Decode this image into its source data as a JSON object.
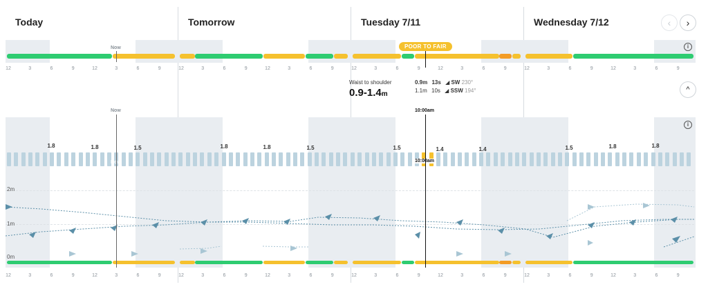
{
  "days": [
    {
      "title": "Today"
    },
    {
      "title": "Tomorrow"
    },
    {
      "title": "Tuesday 7/11"
    },
    {
      "title": "Wednesday 7/12"
    }
  ],
  "nav": {
    "prev": "‹",
    "next": "›",
    "collapse": "^"
  },
  "info_glyph": "i",
  "now_label": "Now",
  "hour_ticks": [
    "12",
    "3",
    "6",
    "9",
    "12",
    "3",
    "6",
    "9"
  ],
  "badge": "POOR TO FAIR",
  "detail": {
    "description": "Waist to shoulder",
    "range": "0.9-1.4",
    "range_unit": "m",
    "swells": [
      {
        "height": "0.9m",
        "period": "13s",
        "direction": "SW",
        "degrees": "230°"
      },
      {
        "height": "1.1m",
        "period": "10s",
        "direction": "SSW",
        "degrees": "194°"
      }
    ]
  },
  "time_marker": "10:00am",
  "tide_heights": [
    "1.8",
    "1.8",
    "1.5",
    "1.8",
    "1.8",
    "1.5",
    "1.5",
    "1.4",
    "1.4",
    "1.5",
    "1.8",
    "1.8"
  ],
  "y_axis": [
    "2m",
    "1m",
    "0m"
  ],
  "colors": {
    "good": "#2ecc71",
    "fair": "#f5c12e",
    "poor": "#f39c25",
    "night": "#e9edf1",
    "swell": "#5b8fa8",
    "swell_light": "#a9c6d4"
  }
}
